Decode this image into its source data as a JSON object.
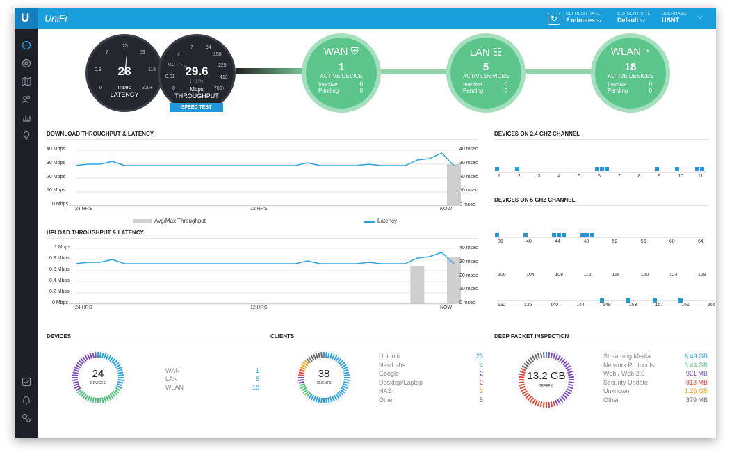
{
  "header": {
    "logo": "U",
    "brand": "UniFi",
    "refresh_rate_caption": "REFRESH RATE",
    "refresh_rate_value": "2 minutes",
    "current_site_caption": "CURRENT SITE",
    "current_site_value": "Default",
    "username_caption": "USERNAME",
    "username_value": "UBNT"
  },
  "sidebar": {
    "icons": [
      "dashboard-icon",
      "statistics-icon",
      "map-icon",
      "clients-icon",
      "insights-icon",
      "bulb-icon",
      "alerts-icon",
      "events-icon",
      "settings-icon"
    ]
  },
  "gauges": {
    "latency": {
      "value": "28",
      "unit": "msec",
      "label": "LATENCY",
      "ticks": [
        "7",
        "25",
        "59",
        "0.9",
        "116",
        "0",
        "200+"
      ]
    },
    "throughput": {
      "value": "29.6",
      "secondary": "0.85",
      "unit": "Mbps",
      "label": "THROUGHPUT",
      "ticks": [
        "2",
        "7",
        "54",
        "0.2",
        "158",
        "0.01",
        "229",
        "413",
        "0",
        "700+"
      ]
    },
    "speed_test_label": "SPEED TEST"
  },
  "network": {
    "wan": {
      "title": "WAN",
      "count": "1",
      "sub": "ACTIVE DEVICE",
      "inactive_label": "Inactive",
      "inactive": "0",
      "pending_label": "Pending",
      "pending": "0"
    },
    "lan": {
      "title": "LAN",
      "count": "5",
      "sub": "ACTIVE DEVICES",
      "inactive_label": "Inactive",
      "inactive": "0",
      "pending_label": "Pending",
      "pending": "0"
    },
    "wlan": {
      "title": "WLAN",
      "count": "18",
      "sub": "ACTIVE DEVICES",
      "inactive_label": "Inactive",
      "inactive": "0",
      "pending_label": "Pending",
      "pending": "0"
    }
  },
  "download_chart": {
    "title": "DOWNLOAD THROUGHPUT & LATENCY",
    "left_ticks": [
      "40 Mbps",
      "30 Mbps",
      "20 Mbps",
      "10 Mbps",
      "0 Mbps"
    ],
    "right_ticks": [
      "40 msec",
      "30 msec",
      "20 msec",
      "10 msec",
      "0 msec"
    ],
    "x_start": "24 HRS",
    "x_mid": "12 HRS",
    "x_end": "NOW",
    "legend_throughput": "Avg/Max Throughput",
    "legend_latency": "Latency",
    "latency_color": "#2ba3dc",
    "bar_color": "#cfcfcf",
    "latency_values": [
      29,
      30,
      30,
      32,
      29,
      29,
      29,
      29,
      29,
      29,
      29,
      29,
      29,
      29,
      29,
      29,
      29,
      29,
      29,
      31,
      29,
      29,
      29,
      29,
      30,
      29,
      29,
      29,
      33,
      34,
      38,
      29
    ],
    "bar_values": [
      0,
      0,
      0,
      0,
      0,
      0,
      0,
      0,
      0,
      0,
      0,
      0,
      0,
      0,
      0,
      0,
      0,
      0,
      0,
      0,
      0,
      0,
      0,
      0,
      0,
      0,
      0,
      0,
      0,
      0,
      0,
      30
    ]
  },
  "upload_chart": {
    "title": "UPLOAD THROUGHPUT & LATENCY",
    "left_ticks": [
      "1 Mbps",
      "0.8 Mbps",
      "0.6 Mbps",
      "0.4 Mbps",
      "0.2 Mbps",
      "0 Mbps"
    ],
    "right_ticks": [
      "40 msec",
      "30 msec",
      "20 msec",
      "10 msec",
      "0 msec"
    ],
    "x_start": "24 HRS",
    "x_mid": "12 HRS",
    "x_end": "NOW",
    "latency_values": [
      29,
      30,
      30,
      32,
      29,
      29,
      29,
      29,
      29,
      29,
      29,
      29,
      29,
      29,
      29,
      29,
      29,
      29,
      29,
      31,
      29,
      29,
      29,
      29,
      30,
      29,
      29,
      29,
      33,
      34,
      37,
      29
    ],
    "bar_values": [
      0,
      0,
      0,
      0,
      0,
      0,
      0,
      0,
      0,
      0,
      0,
      0,
      0,
      0,
      0,
      0,
      0,
      0,
      0,
      0,
      0,
      0,
      0,
      0,
      0,
      0,
      0,
      0,
      0.68,
      0,
      0,
      0.85
    ]
  },
  "channels_24": {
    "title": "DEVICES ON 2.4 GHZ CHANNEL",
    "labels": [
      "1",
      "2",
      "3",
      "4",
      "5",
      "6",
      "7",
      "8",
      "9",
      "10",
      "11"
    ],
    "counts": [
      1,
      1,
      0,
      0,
      0,
      3,
      0,
      0,
      1,
      1,
      2
    ]
  },
  "channels_5": {
    "title": "DEVICES ON 5 GHZ CHANNEL",
    "row1": {
      "labels": [
        "36",
        "40",
        "44",
        "48",
        "52",
        "56",
        "60",
        "64"
      ],
      "counts": [
        1,
        1,
        3,
        3,
        0,
        0,
        0,
        0
      ]
    },
    "row2": {
      "labels": [
        "100",
        "104",
        "108",
        "112",
        "116",
        "120",
        "124",
        "128"
      ],
      "counts": [
        0,
        0,
        0,
        0,
        0,
        0,
        0,
        0
      ]
    },
    "row3": {
      "labels": [
        "132",
        "136",
        "140",
        "144",
        "149",
        "153",
        "157",
        "161",
        "165"
      ],
      "counts": [
        0,
        0,
        0,
        0,
        1,
        1,
        1,
        1,
        0
      ]
    }
  },
  "devices": {
    "title": "DEVICES",
    "total": "24",
    "total_caption": "DEVICES",
    "rows": [
      {
        "name": "WAN",
        "value": "1",
        "color": "#2aa0e0"
      },
      {
        "name": "LAN",
        "value": "5",
        "color": "#2aa0e0"
      },
      {
        "name": "WLAN",
        "value": "18",
        "color": "#2aa0e0"
      }
    ]
  },
  "clients": {
    "title": "CLIENTS",
    "total": "38",
    "total_caption": "CLIENTS",
    "rows": [
      {
        "name": "Ubiquiti",
        "value": "23",
        "color": "#2aa0e0"
      },
      {
        "name": "NestLabs",
        "value": "4",
        "color": "#4ac27a"
      },
      {
        "name": "Google",
        "value": "2",
        "color": "#7d4bbd"
      },
      {
        "name": "Desktop/Laptop",
        "value": "2",
        "color": "#e2473a"
      },
      {
        "name": "NAS",
        "value": "2",
        "color": "#f0a020"
      },
      {
        "name": "Other",
        "value": "5",
        "color": "#6a6a6a"
      }
    ]
  },
  "dpi": {
    "title": "DEEP PACKET INSPECTION",
    "total": "13.2 GB",
    "total_caption": "TRAFFIC",
    "rows": [
      {
        "name": "Streaming Media",
        "value": "6.49 GB",
        "color": "#2aa0e0"
      },
      {
        "name": "Network Protocols",
        "value": "3.44 GB",
        "color": "#4ac27a"
      },
      {
        "name": "Web / Web 2.0",
        "value": "921 MB",
        "color": "#7d4bbd"
      },
      {
        "name": "Security Update",
        "value": "813 MB",
        "color": "#e2473a"
      },
      {
        "name": "Unknown",
        "value": "1.25 GB",
        "color": "#f0a020"
      },
      {
        "name": "Other",
        "value": "379 MB",
        "color": "#6a6a6a"
      }
    ]
  }
}
